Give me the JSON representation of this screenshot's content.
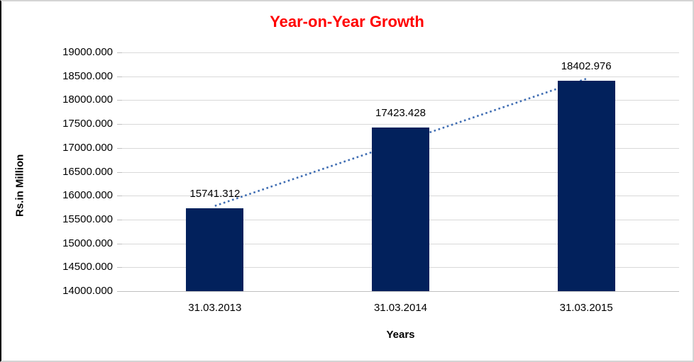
{
  "chart_data": {
    "type": "bar",
    "title": "Year-on-Year Growth",
    "xlabel": "Years",
    "ylabel": "Rs.in Million",
    "categories": [
      "31.03.2013",
      "31.03.2014",
      "31.03.2015"
    ],
    "values": [
      15741.312,
      17423.428,
      18402.976
    ],
    "data_labels": [
      "15741.312",
      "17423.428",
      "18402.976"
    ],
    "ylim": [
      14000,
      19000
    ],
    "ytick_step": 500,
    "ytick_labels": [
      "14000.000",
      "14500.000",
      "15000.000",
      "15500.000",
      "16000.000",
      "16500.000",
      "17000.000",
      "17500.000",
      "18000.000",
      "18500.000",
      "19000.000"
    ],
    "grid": true,
    "legend": "none",
    "trendline": {
      "type": "linear",
      "style": "dotted"
    },
    "colors": {
      "bar": "#02215C",
      "trendline": "#3E6CB2",
      "title": "#FF0000",
      "gridline": "#D9D9D9",
      "axis_line": "#C0C0C0",
      "text": "#000000"
    }
  }
}
